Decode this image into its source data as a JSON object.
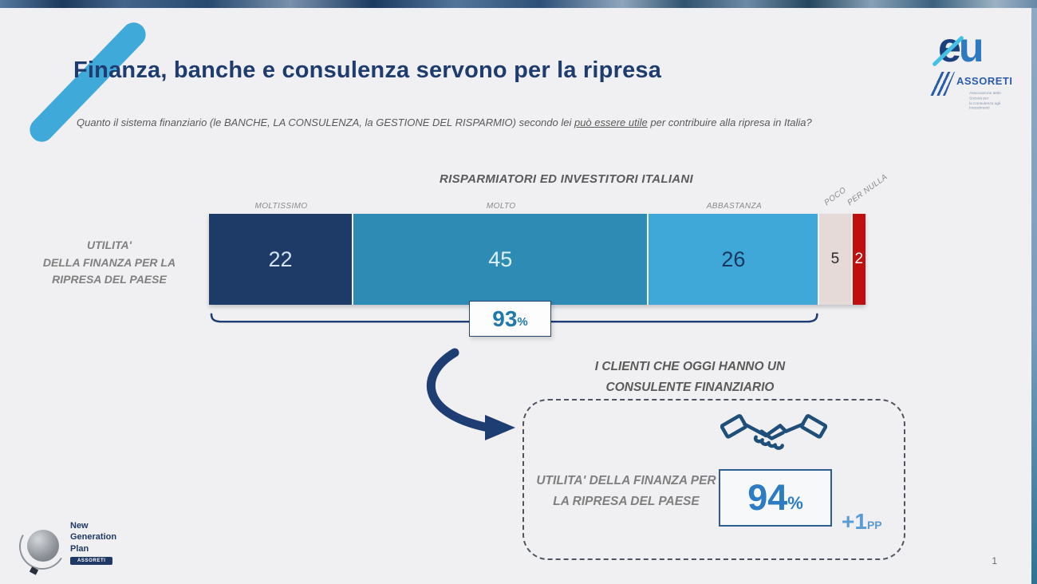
{
  "slide": {
    "title": "Finanza, banche e consulenza servono per la ripresa",
    "question": {
      "pre": "Quanto il sistema finanziario (le BANCHE, LA CONSULENZA, la GESTIONE DEL RISPARMIO) secondo lei ",
      "underlined": "può essere utile",
      "post": " per contribuire alla ripresa in Italia?"
    },
    "page_number": "1"
  },
  "chart_data": {
    "type": "bar",
    "variant": "stacked-horizontal",
    "title": "RISPARMIATORI ED INVESTITORI ITALIANI",
    "row_label_lines": [
      "UTILITA'",
      "DELLA FINANZA PER LA",
      "RIPRESA DEL PAESE"
    ],
    "categories": [
      "MOLTISSIMO",
      "MOLTO",
      "ABBASTANZA",
      "POCO",
      "PER NULLA"
    ],
    "values": [
      22,
      45,
      26,
      5,
      2
    ],
    "units": "percent",
    "xlim": [
      0,
      100
    ],
    "segment_colors": [
      "#1e3a66",
      "#2e8cb4",
      "#3fa8d8",
      "#e6dad8",
      "#c00f0f"
    ],
    "value_text_colors": [
      "#d5e3f0",
      "#ddf0f8",
      "#17375e",
      "#2b2b2b",
      "#ffffff"
    ],
    "bracket": {
      "covers": [
        "MOLTISSIMO",
        "MOLTO",
        "ABBASTANZA"
      ],
      "value": "93",
      "unit": "%"
    }
  },
  "callout": {
    "heading_line1": "I CLIENTI CHE OGGI HANNO UN",
    "heading_line2": "CONSULENTE FINANZIARIO",
    "label": "UTILITA' DELLA FINANZA PER LA RIPRESA DEL PAESE",
    "value": "94",
    "unit": "%",
    "delta": "+1",
    "delta_unit": "PP"
  },
  "logos": {
    "eu": {
      "e": "e",
      "u": "u"
    },
    "assoreti": {
      "name": "ASSORETI",
      "tagline_line1": "Associazione delle Società per",
      "tagline_line2": "la Consulenza agli Investimenti"
    },
    "ngp": {
      "lines": [
        "New",
        "Generation",
        "Plan"
      ],
      "badge": "ASSORETI"
    }
  },
  "colors": {
    "accent_navy": "#1f3c6e",
    "accent_teal": "#2079ab",
    "accent_light_blue": "#3fa9da",
    "delta_blue": "#5b9bd5"
  }
}
